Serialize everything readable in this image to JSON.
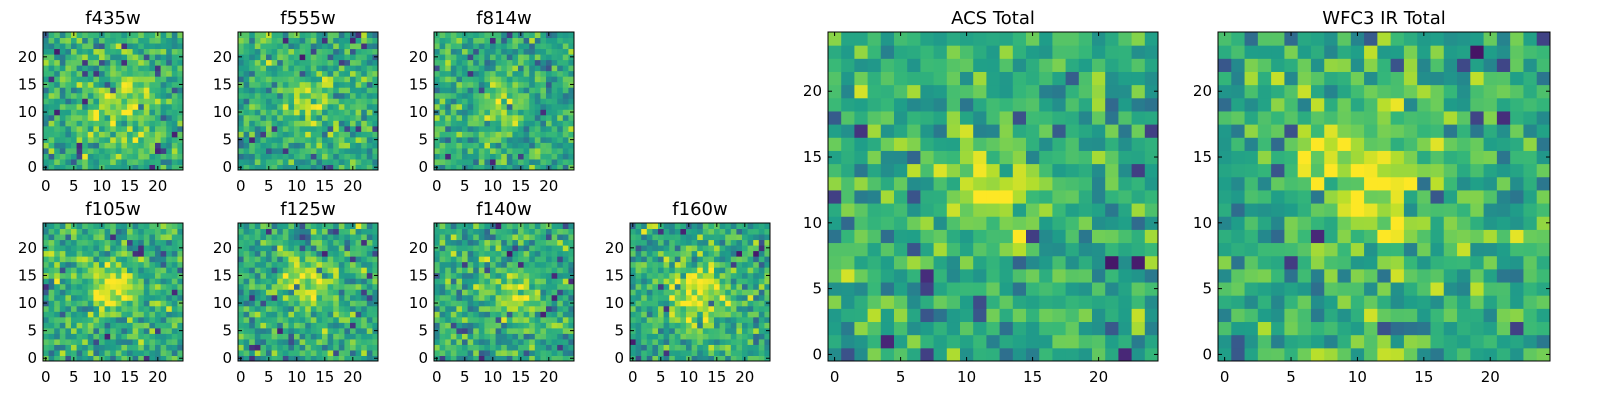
{
  "chart_data": [
    {
      "type": "heatmap",
      "title": "f435w",
      "xticks": [
        "0",
        "5",
        "10",
        "15",
        "20"
      ],
      "yticks": [
        "0",
        "5",
        "10",
        "15",
        "20"
      ],
      "xlim": [
        0,
        24
      ],
      "ylim": [
        0,
        24
      ],
      "grid": false,
      "colormap": "viridis",
      "seed": 11,
      "blobs": [
        {
          "x": 14,
          "y": 11,
          "amp": 0.25,
          "sigma": 4
        }
      ]
    },
    {
      "type": "heatmap",
      "title": "f555w",
      "xticks": [
        "0",
        "5",
        "10",
        "15",
        "20"
      ],
      "yticks": [
        "0",
        "5",
        "10",
        "15",
        "20"
      ],
      "xlim": [
        0,
        24
      ],
      "ylim": [
        0,
        24
      ],
      "grid": false,
      "colormap": "viridis",
      "seed": 23,
      "blobs": [
        {
          "x": 12,
          "y": 12,
          "amp": 0.35,
          "sigma": 2.5
        }
      ]
    },
    {
      "type": "heatmap",
      "title": "f814w",
      "xticks": [
        "0",
        "5",
        "10",
        "15",
        "20"
      ],
      "yticks": [
        "0",
        "5",
        "10",
        "15",
        "20"
      ],
      "xlim": [
        0,
        24
      ],
      "ylim": [
        0,
        24
      ],
      "grid": false,
      "colormap": "viridis",
      "seed": 37,
      "blobs": [
        {
          "x": 12,
          "y": 12,
          "amp": 0.2,
          "sigma": 3
        }
      ]
    },
    {
      "type": "heatmap",
      "title": "f105w",
      "xticks": [
        "0",
        "5",
        "10",
        "15",
        "20"
      ],
      "yticks": [
        "0",
        "5",
        "10",
        "15",
        "20"
      ],
      "xlim": [
        0,
        24
      ],
      "ylim": [
        0,
        24
      ],
      "grid": false,
      "colormap": "viridis",
      "seed": 41,
      "blobs": [
        {
          "x": 12,
          "y": 13,
          "amp": 0.35,
          "sigma": 3
        }
      ]
    },
    {
      "type": "heatmap",
      "title": "f125w",
      "xticks": [
        "0",
        "5",
        "10",
        "15",
        "20"
      ],
      "yticks": [
        "0",
        "5",
        "10",
        "15",
        "20"
      ],
      "xlim": [
        0,
        24
      ],
      "ylim": [
        0,
        24
      ],
      "grid": false,
      "colormap": "viridis",
      "seed": 53,
      "blobs": [
        {
          "x": 12,
          "y": 14,
          "amp": 0.3,
          "sigma": 3
        }
      ]
    },
    {
      "type": "heatmap",
      "title": "f140w",
      "xticks": [
        "0",
        "5",
        "10",
        "15",
        "20"
      ],
      "yticks": [
        "0",
        "5",
        "10",
        "15",
        "20"
      ],
      "xlim": [
        0,
        24
      ],
      "ylim": [
        0,
        24
      ],
      "grid": false,
      "colormap": "viridis",
      "seed": 67,
      "blobs": [
        {
          "x": 14,
          "y": 11,
          "amp": 0.35,
          "sigma": 2.5
        }
      ]
    },
    {
      "type": "heatmap",
      "title": "f160w",
      "xticks": [
        "0",
        "5",
        "10",
        "15",
        "20"
      ],
      "yticks": [
        "0",
        "5",
        "10",
        "15",
        "20"
      ],
      "xlim": [
        0,
        24
      ],
      "ylim": [
        0,
        24
      ],
      "grid": false,
      "colormap": "viridis",
      "seed": 79,
      "blobs": [
        {
          "x": 12,
          "y": 12,
          "amp": 0.35,
          "sigma": 3.5
        }
      ]
    },
    {
      "type": "heatmap",
      "title": "ACS Total",
      "xticks": [
        "0",
        "5",
        "10",
        "15",
        "20"
      ],
      "yticks": [
        "0",
        "5",
        "10",
        "15",
        "20"
      ],
      "xlim": [
        0,
        24
      ],
      "ylim": [
        0,
        24
      ],
      "grid": false,
      "colormap": "viridis",
      "seed": 91,
      "blobs": [
        {
          "x": 12,
          "y": 12,
          "amp": 0.35,
          "sigma": 2.5
        }
      ]
    },
    {
      "type": "heatmap",
      "title": "WFC3 IR Total",
      "xticks": [
        "0",
        "5",
        "10",
        "15",
        "20"
      ],
      "yticks": [
        "0",
        "5",
        "10",
        "15",
        "20"
      ],
      "xlim": [
        0,
        24
      ],
      "ylim": [
        0,
        24
      ],
      "grid": false,
      "colormap": "viridis",
      "seed": 103,
      "blobs": [
        {
          "x": 12,
          "y": 13,
          "amp": 0.4,
          "sigma": 3
        },
        {
          "x": 7,
          "y": 16,
          "amp": 0.3,
          "sigma": 1.5
        }
      ]
    }
  ]
}
